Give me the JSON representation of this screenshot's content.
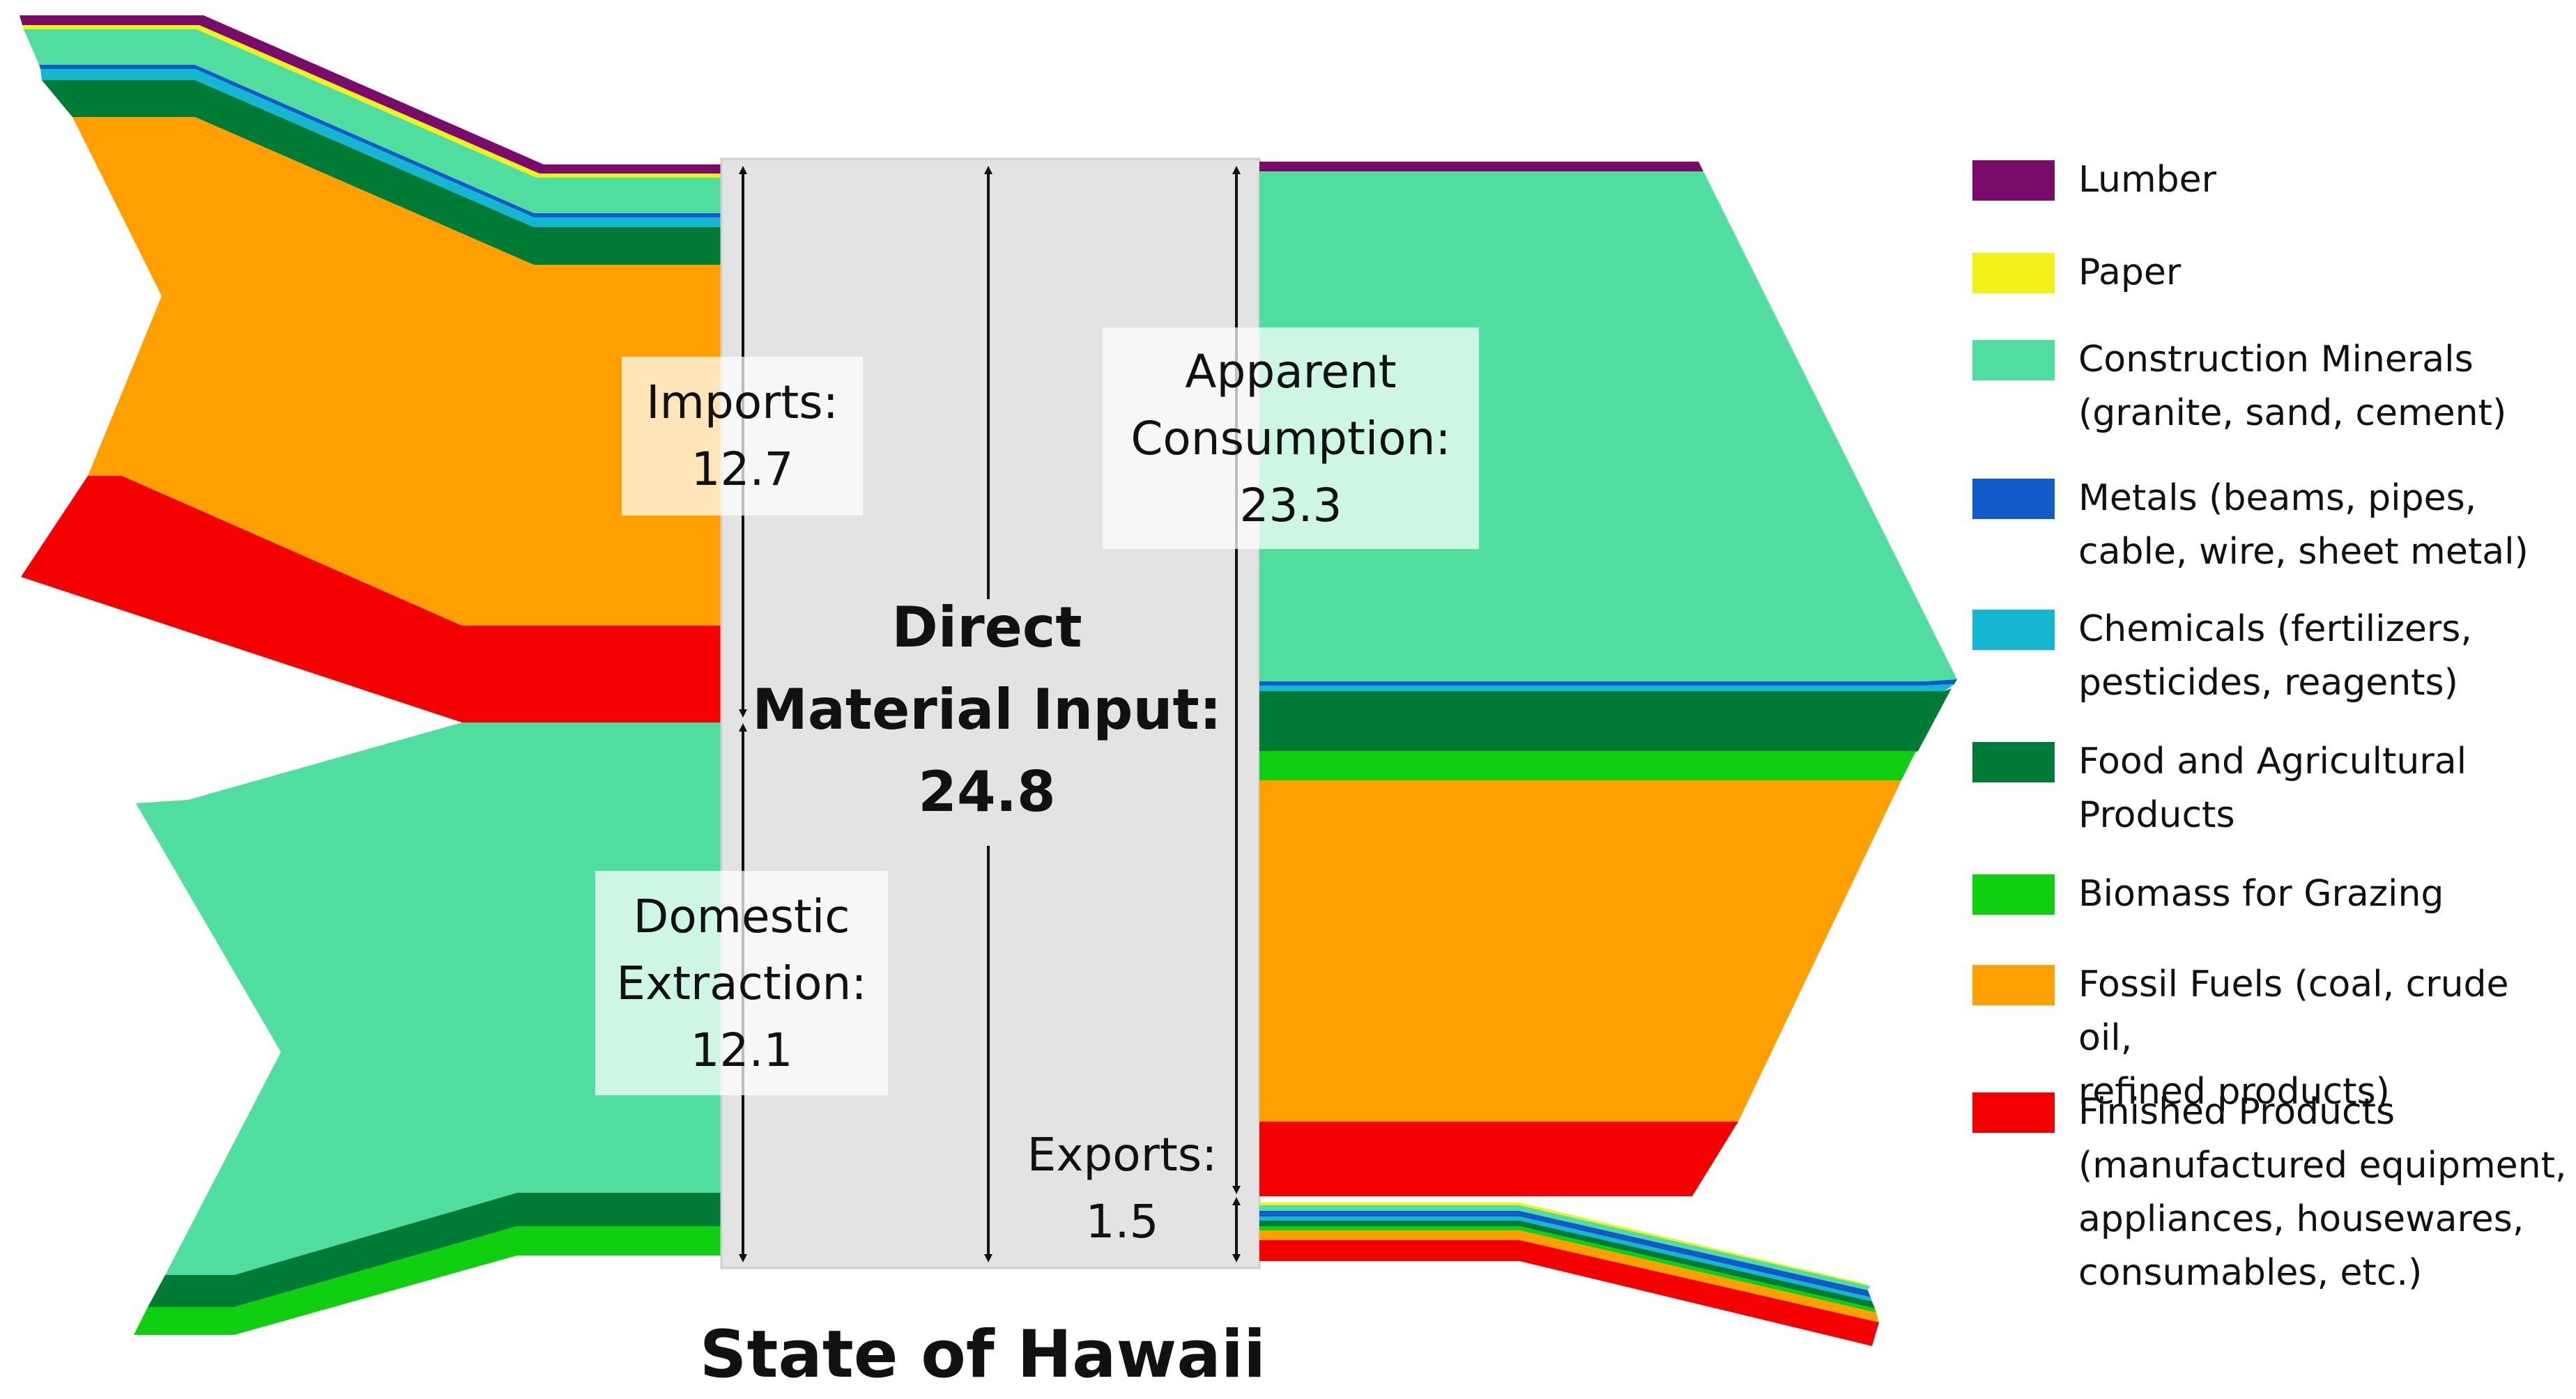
{
  "diagram": {
    "title": "State of Hawaii",
    "center_label": {
      "line1": "Direct",
      "line2": "Material Input:",
      "value": "24.8"
    },
    "flows": {
      "imports": {
        "label": "Imports:",
        "value": "12.7"
      },
      "domestic_extraction": {
        "label_line1": "Domestic",
        "label_line2": "Extraction:",
        "value": "12.1"
      },
      "apparent_consumption": {
        "label_line1": "Apparent",
        "label_line2": "Consumption:",
        "value": "23.3"
      },
      "exports": {
        "label": "Exports:",
        "value": "1.5"
      }
    }
  },
  "colors": {
    "lumber": "#7b0b6b",
    "paper": "#f2f21a",
    "construction_minerals": "#50dea0",
    "metals": "#1259c9",
    "chemicals": "#14b6d2",
    "food_agricultural": "#007b35",
    "biomass_grazing": "#10ce10",
    "fossil_fuels": "#ffa000",
    "finished_products": "#f40000",
    "center_box": "#e3e3e3"
  },
  "legend": {
    "items": [
      {
        "label": "Lumber",
        "color": "#7b0b6b"
      },
      {
        "label": "Paper",
        "color": "#f2f21a"
      },
      {
        "label": "Construction Minerals\n(granite, sand, cement)",
        "color": "#50dea0"
      },
      {
        "label": "Metals (beams, pipes,\ncable, wire, sheet metal)",
        "color": "#1259c9"
      },
      {
        "label": "Chemicals (fertilizers,\npesticides, reagents)",
        "color": "#14b6d2"
      },
      {
        "label": "Food and Agricultural\nProducts",
        "color": "#007b35"
      },
      {
        "label": "Biomass for Grazing",
        "color": "#10ce10"
      },
      {
        "label": "Fossil Fuels (coal, crude oil,\nrefined products)",
        "color": "#ffa000"
      },
      {
        "label": "Finished Products\n(manufactured equipment,\nappliances, housewares,\nconsumables, etc.)",
        "color": "#f40000"
      }
    ]
  }
}
